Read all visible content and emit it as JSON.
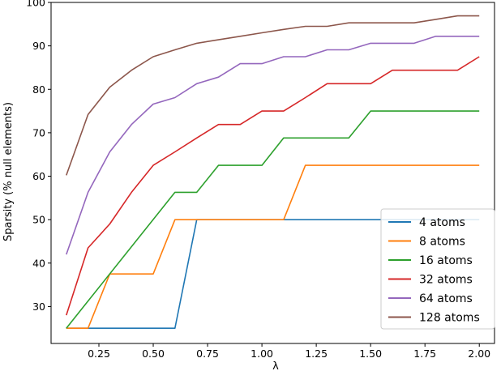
{
  "chart_data": {
    "type": "line",
    "title": "",
    "xlabel": "λ",
    "ylabel": "Sparsity (% null elements)",
    "xlim": [
      0.03,
      2.07
    ],
    "ylim": [
      21.5,
      100
    ],
    "xticks": [
      0.25,
      0.5,
      0.75,
      1.0,
      1.25,
      1.5,
      1.75,
      2.0
    ],
    "xtick_labels": [
      "0.25",
      "0.50",
      "0.75",
      "1.00",
      "1.25",
      "1.50",
      "1.75",
      "2.00"
    ],
    "yticks": [
      30,
      40,
      50,
      60,
      70,
      80,
      90,
      100
    ],
    "ytick_labels": [
      "30",
      "40",
      "50",
      "60",
      "70",
      "80",
      "90",
      "100"
    ],
    "grid": false,
    "legend_position": "bottom-right",
    "series": [
      {
        "name": "4 atoms",
        "color": "#1f77b4",
        "points": [
          [
            0.1,
            25
          ],
          [
            0.6,
            25
          ],
          [
            0.7,
            50
          ],
          [
            2.0,
            50
          ]
        ]
      },
      {
        "name": "8 atoms",
        "color": "#ff7f0e",
        "points": [
          [
            0.1,
            25
          ],
          [
            0.2,
            25
          ],
          [
            0.3,
            37.5
          ],
          [
            0.5,
            37.5
          ],
          [
            0.6,
            50
          ],
          [
            1.1,
            50
          ],
          [
            1.2,
            62.5
          ],
          [
            2.0,
            62.5
          ]
        ]
      },
      {
        "name": "16 atoms",
        "color": "#2ca02c",
        "points": [
          [
            0.1,
            25
          ],
          [
            0.6,
            56.3
          ],
          [
            0.7,
            56.3
          ],
          [
            0.8,
            62.5
          ],
          [
            1.0,
            62.5
          ],
          [
            1.1,
            68.8
          ],
          [
            1.4,
            68.8
          ],
          [
            1.5,
            75
          ],
          [
            2.0,
            75
          ]
        ]
      },
      {
        "name": "32 atoms",
        "color": "#d62728",
        "points": [
          [
            0.1,
            28
          ],
          [
            0.2,
            43.5
          ],
          [
            0.3,
            49
          ],
          [
            0.4,
            56.3
          ],
          [
            0.5,
            62.5
          ],
          [
            0.6,
            65.6
          ],
          [
            0.7,
            68.8
          ],
          [
            0.8,
            71.9
          ],
          [
            0.9,
            71.9
          ],
          [
            1.0,
            75
          ],
          [
            1.1,
            75
          ],
          [
            1.2,
            78.1
          ],
          [
            1.3,
            81.3
          ],
          [
            1.5,
            81.3
          ],
          [
            1.6,
            84.4
          ],
          [
            1.9,
            84.4
          ],
          [
            2.0,
            87.5
          ]
        ]
      },
      {
        "name": "64 atoms",
        "color": "#9467bd",
        "points": [
          [
            0.1,
            42
          ],
          [
            0.2,
            56.3
          ],
          [
            0.3,
            65.6
          ],
          [
            0.4,
            71.9
          ],
          [
            0.5,
            76.6
          ],
          [
            0.6,
            78.1
          ],
          [
            0.7,
            81.3
          ],
          [
            0.8,
            82.8
          ],
          [
            0.9,
            85.9
          ],
          [
            1.0,
            85.9
          ],
          [
            1.1,
            87.5
          ],
          [
            1.2,
            87.5
          ],
          [
            1.3,
            89.1
          ],
          [
            1.4,
            89.1
          ],
          [
            1.5,
            90.6
          ],
          [
            1.7,
            90.6
          ],
          [
            1.8,
            92.2
          ],
          [
            2.0,
            92.2
          ]
        ]
      },
      {
        "name": "128 atoms",
        "color": "#8c564b",
        "points": [
          [
            0.1,
            60.2
          ],
          [
            0.2,
            74.2
          ],
          [
            0.3,
            80.5
          ],
          [
            0.4,
            84.4
          ],
          [
            0.5,
            87.5
          ],
          [
            0.6,
            89.1
          ],
          [
            0.7,
            90.6
          ],
          [
            0.8,
            91.4
          ],
          [
            0.9,
            92.2
          ],
          [
            1.0,
            93
          ],
          [
            1.1,
            93.8
          ],
          [
            1.2,
            94.5
          ],
          [
            1.3,
            94.5
          ],
          [
            1.4,
            95.3
          ],
          [
            1.5,
            95.3
          ],
          [
            1.6,
            95.3
          ],
          [
            1.7,
            95.3
          ],
          [
            1.8,
            96.1
          ],
          [
            1.9,
            96.9
          ],
          [
            2.0,
            96.9
          ]
        ]
      }
    ]
  }
}
